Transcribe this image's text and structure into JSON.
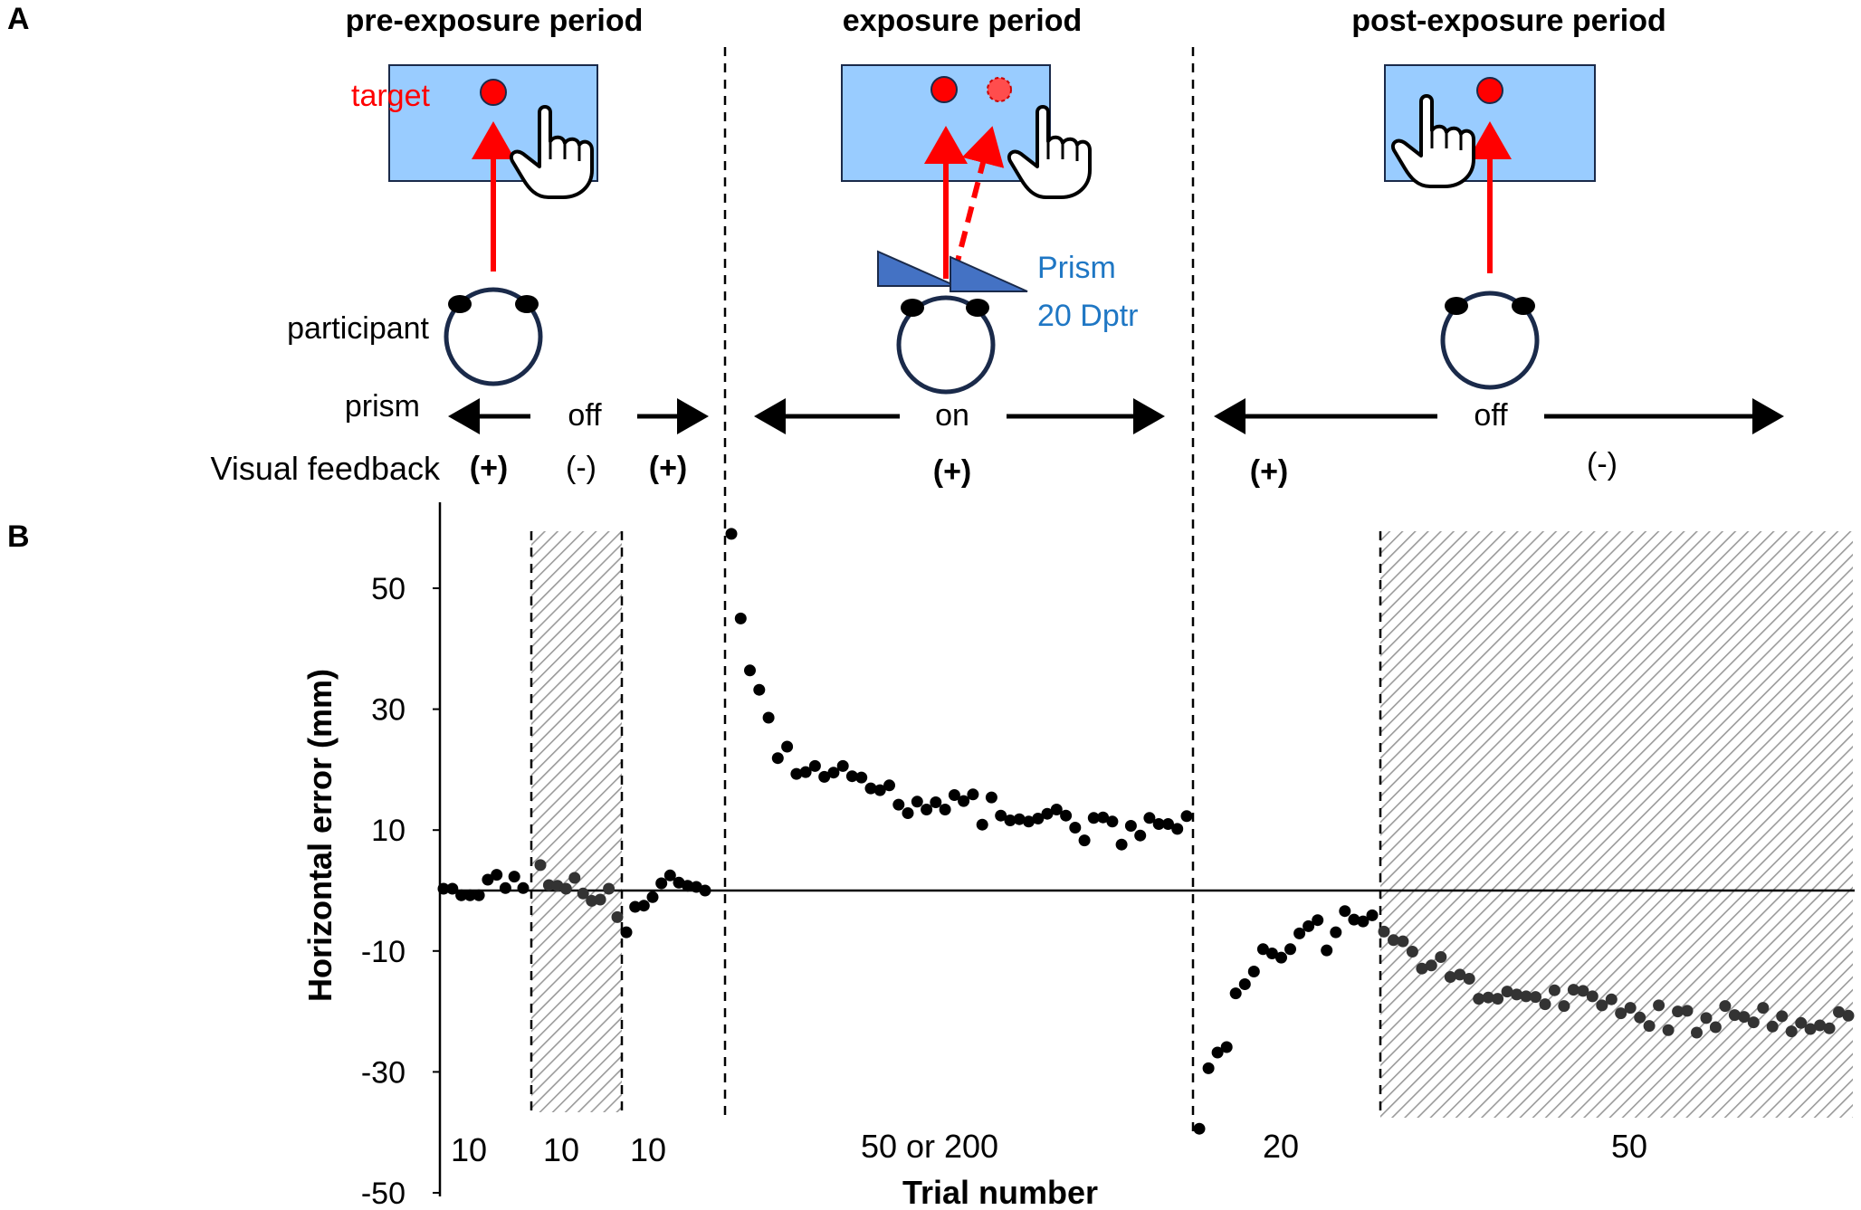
{
  "panel_a": {
    "letter": "A",
    "periods": [
      {
        "title": "pre-exposure period",
        "prism": "off",
        "feedback": [
          "(+)",
          "(-)",
          "(+)"
        ]
      },
      {
        "title": "exposure period",
        "prism": "on",
        "feedback": [
          "(+)"
        ]
      },
      {
        "title": "post-exposure period",
        "prism": "off",
        "feedback": [
          "(+)",
          "(-)"
        ]
      }
    ],
    "labels": {
      "target": "target",
      "participant": "participant",
      "prism_row": "prism",
      "feedback_row": "Visual feedback",
      "prism_name": "Prism",
      "prism_power": "20 Dptr"
    },
    "colors": {
      "screen": "#99ccff",
      "target": "#ff0000",
      "prism": "#4472c4",
      "prism_text": "#1f77c4",
      "head": "#1a2a4a"
    }
  },
  "panel_b": {
    "letter": "B"
  },
  "chart_data": {
    "type": "scatter",
    "title": "",
    "xlabel": "Trial number",
    "ylabel": "Horizontal error (mm)",
    "yticks": [
      50,
      30,
      10,
      -10,
      -30,
      -50
    ],
    "ylim": [
      -50,
      60
    ],
    "block_labels": [
      "10",
      "10",
      "10",
      "50 or 200",
      "20",
      "50"
    ],
    "shaded_blocks": [
      "pre-exposure no-feedback block",
      "post-exposure no-feedback block"
    ],
    "series": [
      {
        "values": [
          0.3,
          0.3,
          -0.8,
          -0.8,
          -0.8,
          1.8,
          2.6,
          0.4,
          2.3,
          0.4
        ]
      },
      {
        "values": [
          4.2,
          0.9,
          0.8,
          0.3,
          2.1,
          -0.5,
          -1.7,
          -1.5,
          0.3,
          -4.4
        ]
      },
      {
        "values": [
          -6.9,
          -2.7,
          -2.5,
          -1.1,
          1.2,
          2.5,
          1.3,
          0.8,
          0.6,
          0.0
        ]
      },
      {
        "values": [
          59.0,
          45.0,
          36.4,
          33.2,
          28.6,
          21.9,
          23.8,
          19.3,
          19.6,
          20.6,
          18.8,
          19.5,
          20.6,
          18.9,
          18.7,
          16.9,
          16.6,
          17.4,
          14.2,
          12.8,
          14.7,
          13.4,
          14.6,
          13.4,
          15.8,
          14.8,
          15.9,
          10.9,
          15.4,
          12.4,
          11.6,
          11.8,
          11.4,
          11.9,
          12.7,
          13.4,
          12.4,
          10.4,
          8.3,
          12.0,
          12.1,
          11.4,
          7.6,
          10.7,
          9.1,
          12.0,
          11.0,
          11.0,
          10.2,
          12.3
        ]
      },
      {
        "values": [
          -39.4,
          -29.4,
          -26.8,
          -25.9,
          -17.0,
          -15.5,
          -13.4,
          -9.7,
          -10.4,
          -11.1,
          -9.7,
          -7.1,
          -5.9,
          -4.9,
          -9.9,
          -6.9,
          -3.4,
          -4.8,
          -5.1,
          -4.1
        ]
      },
      {
        "values": [
          -6.8,
          -8.2,
          -8.4,
          -10.1,
          -12.9,
          -12.4,
          -11.0,
          -14.3,
          -13.9,
          -14.6,
          -17.9,
          -17.7,
          -17.9,
          -16.7,
          -17.2,
          -17.5,
          -17.6,
          -18.8,
          -16.5,
          -19.1,
          -16.4,
          -16.6,
          -17.5,
          -19.0,
          -18.0,
          -20.3,
          -19.4,
          -21.0,
          -22.4,
          -19.0,
          -23.1,
          -20.0,
          -19.9,
          -23.5,
          -21.1,
          -22.6,
          -19.1,
          -20.6,
          -20.9,
          -21.8,
          -19.4,
          -22.5,
          -20.8,
          -23.3,
          -21.9,
          -22.9,
          -22.3,
          -22.8,
          -20.1,
          -20.7
        ]
      }
    ]
  }
}
